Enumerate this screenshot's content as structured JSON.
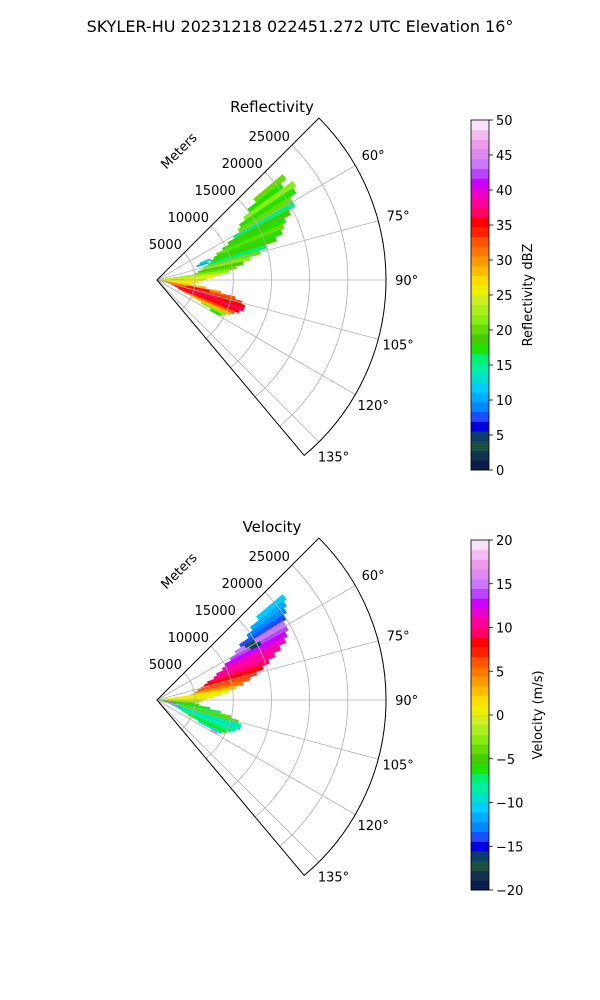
{
  "figure": {
    "title": "SKYLER-HU  20231218  022451.272 UTC Elevation 16°"
  },
  "chart_data": [
    {
      "type": "heatmap",
      "projection": "polar-sector",
      "title": "Reflectivity",
      "range_axis_label": "Meters",
      "range_ticks": [
        5000,
        10000,
        15000,
        20000,
        25000
      ],
      "range_tick_labels": [
        "5000",
        "10000",
        "15000",
        "20000",
        "25000"
      ],
      "rlim": [
        0,
        30000
      ],
      "azimuth_ticks": [
        60,
        75,
        90,
        105,
        120,
        135
      ],
      "azimuth_tick_labels": [
        "60°",
        "75°",
        "90°",
        "105°",
        "120°",
        "135°"
      ],
      "azimuth_lim": [
        45,
        140
      ],
      "grid": true,
      "colorbar": {
        "label": "Reflectivity dBZ",
        "vmin": 0,
        "vmax": 50,
        "ticks": [
          0,
          5,
          10,
          15,
          20,
          25,
          30,
          35,
          40,
          45,
          50
        ],
        "tick_labels": [
          "0",
          "5",
          "10",
          "15",
          "20",
          "25",
          "30",
          "35",
          "40",
          "45",
          "50"
        ],
        "colors": [
          "#0b1d4f",
          "#13324f",
          "#1b5040",
          "#0a3d6a",
          "#0000dd",
          "#1e4cff",
          "#0088ff",
          "#00aaff",
          "#00ccff",
          "#00e0d0",
          "#00f0a0",
          "#00f070",
          "#22e000",
          "#44cc00",
          "#66dd00",
          "#88ee11",
          "#aaee22",
          "#ccee22",
          "#eeee00",
          "#ffdd00",
          "#ffbb00",
          "#ff9900",
          "#ff7700",
          "#ff5500",
          "#ff2200",
          "#ff0000",
          "#ff0066",
          "#ff0099",
          "#ee00cc",
          "#cc00ff",
          "#bb44ff",
          "#cc77ff",
          "#dd88ee",
          "#ee99ee",
          "#f4bbf4",
          "#fbe0fb"
        ]
      },
      "cells": [
        {
          "az": 51,
          "r": [
            16500,
            21500
          ],
          "v": 20
        },
        {
          "az": 53,
          "r": [
            15000,
            20500
          ],
          "v": 18
        },
        {
          "az": 55,
          "r": [
            14000,
            22000
          ],
          "v": 21
        },
        {
          "az": 57,
          "r": [
            13000,
            21500
          ],
          "v": 17
        },
        {
          "az": 59,
          "r": [
            12500,
            20500
          ],
          "v": 20
        },
        {
          "az": 61,
          "r": [
            11500,
            20500
          ],
          "v": 16
        },
        {
          "az": 63,
          "r": [
            10500,
            19500
          ],
          "v": 19
        },
        {
          "az": 65,
          "r": [
            9500,
            18500
          ],
          "v": 17
        },
        {
          "az": 67,
          "r": [
            8500,
            18000
          ],
          "v": 20
        },
        {
          "az": 69,
          "r": [
            8000,
            17500
          ],
          "v": 18
        },
        {
          "az": 71,
          "r": [
            7500,
            16500
          ],
          "v": 19
        },
        {
          "az": 73,
          "r": [
            7000,
            15000
          ],
          "v": 16
        },
        {
          "az": 75,
          "r": [
            6500,
            14000
          ],
          "v": 20
        },
        {
          "az": 77,
          "r": [
            6000,
            12500
          ],
          "v": 21
        },
        {
          "az": 79,
          "r": [
            5500,
            11500
          ],
          "v": 19
        },
        {
          "az": 81,
          "r": [
            5000,
            10500
          ],
          "v": 20
        },
        {
          "az": 83,
          "r": [
            1000,
            9500
          ],
          "v": 22
        },
        {
          "az": 85,
          "r": [
            500,
            8500
          ],
          "v": 24
        },
        {
          "az": 87,
          "r": [
            500,
            7500
          ],
          "v": 25
        },
        {
          "az": 89,
          "r": [
            500,
            6500
          ],
          "v": 24
        },
        {
          "az": 91,
          "r": [
            500,
            6000
          ],
          "v": 26
        },
        {
          "az": 93,
          "r": [
            500,
            5500
          ],
          "v": 25
        },
        {
          "az": 95,
          "r": [
            500,
            5000
          ],
          "v": 27
        },
        {
          "az": 97,
          "r": [
            500,
            4500
          ],
          "v": 26
        },
        {
          "az": 99,
          "r": [
            500,
            6500
          ],
          "v": 28
        },
        {
          "az": 101,
          "r": [
            500,
            8500
          ],
          "v": 30
        },
        {
          "az": 103,
          "r": [
            1000,
            10500
          ],
          "v": 32
        },
        {
          "az": 105,
          "r": [
            1500,
            11500
          ],
          "v": 34
        },
        {
          "az": 107,
          "r": [
            2000,
            12000
          ],
          "v": 36
        },
        {
          "az": 109,
          "r": [
            2500,
            12000
          ],
          "v": 37
        },
        {
          "az": 111,
          "r": [
            3000,
            11500
          ],
          "v": 35
        },
        {
          "az": 113,
          "r": [
            3500,
            11000
          ],
          "v": 33
        },
        {
          "az": 115,
          "r": [
            5000,
            10500
          ],
          "v": 28
        },
        {
          "az": 117,
          "r": [
            6500,
            10000
          ],
          "v": 22
        },
        {
          "az": 119,
          "r": [
            8000,
            9500
          ],
          "v": 18
        },
        {
          "az": 69,
          "r": [
            6000,
            7500
          ],
          "v": 13
        },
        {
          "az": 71,
          "r": [
            5500,
            7000
          ],
          "v": 10
        },
        {
          "az": 88,
          "r": [
            2000,
            3500
          ],
          "v": 22
        },
        {
          "az": 102,
          "r": [
            4000,
            7000
          ],
          "v": 36
        },
        {
          "az": 106,
          "r": [
            5000,
            8500
          ],
          "v": 37
        },
        {
          "az": 110,
          "r": [
            6000,
            9000
          ],
          "v": 36
        }
      ]
    },
    {
      "type": "heatmap",
      "projection": "polar-sector",
      "title": "Velocity",
      "range_axis_label": "Meters",
      "range_ticks": [
        5000,
        10000,
        15000,
        20000,
        25000
      ],
      "range_tick_labels": [
        "5000",
        "10000",
        "15000",
        "20000",
        "25000"
      ],
      "rlim": [
        0,
        30000
      ],
      "azimuth_ticks": [
        60,
        75,
        90,
        105,
        120,
        135
      ],
      "azimuth_tick_labels": [
        "60°",
        "75°",
        "90°",
        "105°",
        "120°",
        "135°"
      ],
      "azimuth_lim": [
        45,
        140
      ],
      "grid": true,
      "colorbar": {
        "label": "Velocity (m/s)",
        "vmin": -20,
        "vmax": 20,
        "ticks": [
          -20,
          -15,
          -10,
          -5,
          0,
          5,
          10,
          15,
          20
        ],
        "tick_labels": [
          "−20",
          "−15",
          "−10",
          "−5",
          "0",
          "5",
          "10",
          "15",
          "20"
        ],
        "colors": [
          "#0b1d4f",
          "#13324f",
          "#1b5040",
          "#0a3d6a",
          "#0000dd",
          "#1e4cff",
          "#0088ff",
          "#00aaff",
          "#00ccff",
          "#00e0d0",
          "#00f0a0",
          "#00f070",
          "#22e000",
          "#44cc00",
          "#66dd00",
          "#88ee11",
          "#aaee22",
          "#ccee22",
          "#eeee00",
          "#ffdd00",
          "#ffbb00",
          "#ff9900",
          "#ff7700",
          "#ff5500",
          "#ff2200",
          "#ff0000",
          "#ff0066",
          "#ff0099",
          "#ee00cc",
          "#cc00ff",
          "#bb44ff",
          "#cc77ff",
          "#dd88ee",
          "#ee99ee",
          "#f4bbf4",
          "#fbe0fb"
        ]
      },
      "cells": [
        {
          "az": 51,
          "r": [
            17000,
            21500
          ],
          "v": -11
        },
        {
          "az": 53,
          "r": [
            15500,
            21000
          ],
          "v": -12
        },
        {
          "az": 55,
          "r": [
            14500,
            20500
          ],
          "v": -13
        },
        {
          "az": 57,
          "r": [
            13000,
            20000
          ],
          "v": -14
        },
        {
          "az": 59,
          "r": [
            12000,
            19500
          ],
          "v": 15
        },
        {
          "az": 61,
          "r": [
            11000,
            19500
          ],
          "v": 14
        },
        {
          "az": 63,
          "r": [
            10000,
            19000
          ],
          "v": 13
        },
        {
          "az": 65,
          "r": [
            9500,
            18500
          ],
          "v": 12
        },
        {
          "az": 67,
          "r": [
            8500,
            17500
          ],
          "v": 11
        },
        {
          "az": 69,
          "r": [
            8000,
            16500
          ],
          "v": 10
        },
        {
          "az": 71,
          "r": [
            7000,
            15500
          ],
          "v": 9
        },
        {
          "az": 73,
          "r": [
            6500,
            14500
          ],
          "v": 8
        },
        {
          "az": 75,
          "r": [
            6000,
            13500
          ],
          "v": 7
        },
        {
          "az": 77,
          "r": [
            5500,
            12500
          ],
          "v": 6
        },
        {
          "az": 79,
          "r": [
            5000,
            11500
          ],
          "v": 5
        },
        {
          "az": 81,
          "r": [
            4500,
            10500
          ],
          "v": 3
        },
        {
          "az": 83,
          "r": [
            1000,
            9500
          ],
          "v": 1
        },
        {
          "az": 85,
          "r": [
            500,
            8500
          ],
          "v": 0
        },
        {
          "az": 87,
          "r": [
            500,
            7500
          ],
          "v": 1
        },
        {
          "az": 89,
          "r": [
            500,
            6500
          ],
          "v": 2
        },
        {
          "az": 91,
          "r": [
            500,
            6000
          ],
          "v": -2
        },
        {
          "az": 93,
          "r": [
            500,
            5500
          ],
          "v": -3
        },
        {
          "az": 95,
          "r": [
            500,
            5000
          ],
          "v": -4
        },
        {
          "az": 97,
          "r": [
            500,
            5500
          ],
          "v": -5
        },
        {
          "az": 99,
          "r": [
            500,
            7000
          ],
          "v": -6
        },
        {
          "az": 101,
          "r": [
            800,
            8500
          ],
          "v": -7
        },
        {
          "az": 103,
          "r": [
            1000,
            10000
          ],
          "v": -4
        },
        {
          "az": 105,
          "r": [
            1500,
            11000
          ],
          "v": -6
        },
        {
          "az": 107,
          "r": [
            2000,
            11500
          ],
          "v": -8
        },
        {
          "az": 109,
          "r": [
            2500,
            11500
          ],
          "v": -9
        },
        {
          "az": 111,
          "r": [
            3000,
            11000
          ],
          "v": -8
        },
        {
          "az": 113,
          "r": [
            3500,
            10500
          ],
          "v": -7
        },
        {
          "az": 115,
          "r": [
            4500,
            10000
          ],
          "v": -6
        },
        {
          "az": 117,
          "r": [
            6000,
            9500
          ],
          "v": -9
        },
        {
          "az": 119,
          "r": [
            8000,
            9000
          ],
          "v": 16
        },
        {
          "az": 101,
          "r": [
            1000,
            2500
          ],
          "v": 13
        },
        {
          "az": 103,
          "r": [
            1200,
            3000
          ],
          "v": 17
        },
        {
          "az": 105,
          "r": [
            1500,
            3200
          ],
          "v": -11
        },
        {
          "az": 107,
          "r": [
            2000,
            3500
          ],
          "v": -12
        },
        {
          "az": 59,
          "r": [
            13500,
            15000
          ],
          "v": -17
        },
        {
          "az": 61,
          "r": [
            14000,
            15500
          ],
          "v": -16
        }
      ]
    }
  ]
}
